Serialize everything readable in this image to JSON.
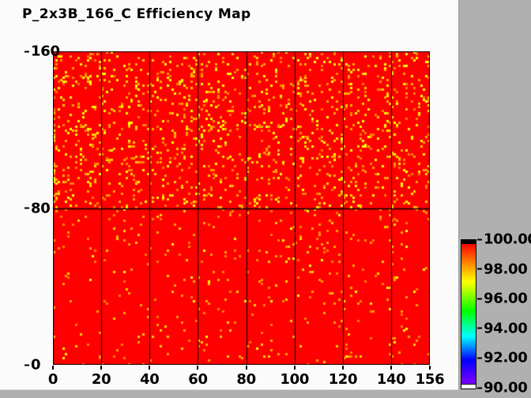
{
  "window": {
    "background_color": "#b0b0b0",
    "panel_color": "#fbfbfb"
  },
  "header": {
    "title": "P_2x3B_166_C Efficiency Map"
  },
  "chart_data": {
    "type": "heatmap",
    "title": "P_2x3B_166_C Efficiency Map",
    "xlabel": "",
    "ylabel": "",
    "xlim": [
      0,
      156
    ],
    "ylim": [
      0,
      160
    ],
    "x_ticks": [
      0,
      20,
      40,
      60,
      80,
      100,
      120,
      140,
      156
    ],
    "x_tick_labels": [
      "0",
      "20",
      "40",
      "60",
      "80",
      "100",
      "120",
      "140",
      "156"
    ],
    "y_ticks": [
      160,
      80,
      0
    ],
    "y_tick_labels": [
      "160",
      "80",
      "0"
    ],
    "bins": {
      "x": 156,
      "y": 160
    },
    "base_value_pct": 100,
    "base_color": "#ff0000",
    "grid": {
      "vertical_step": 20,
      "horizontal_step": 80,
      "color": "#000000",
      "on": true
    },
    "noise_cells": {
      "seed": 20166,
      "description": "Random scattered bins of ~96-99.5% efficiency (yellow/orange) over a ~100% (red) base. Upper half (y 80-160) is noticeably denser than lower half (y 0-80); the left-edge bin column in the upper half carries frequent dots.",
      "regions": [
        {
          "y_from": 80,
          "y_to": 160,
          "fill_fraction": 0.095,
          "first_col_fraction": 0.35,
          "colors": [
            "#ffff00",
            "#ffd000",
            "#ffa500",
            "#ff8000"
          ],
          "weights": [
            0.3,
            0.2,
            0.28,
            0.22
          ]
        },
        {
          "y_from": 0,
          "y_to": 80,
          "fill_fraction": 0.032,
          "first_col_fraction": 0.06,
          "colors": [
            "#ffff00",
            "#ffd000",
            "#ffa500",
            "#ff8000"
          ],
          "weights": [
            0.1,
            0.18,
            0.4,
            0.32
          ]
        }
      ]
    },
    "colorbar": {
      "min": 90,
      "max": 100,
      "tick_values": [
        100,
        98,
        96,
        94,
        92,
        90
      ],
      "tick_labels": [
        "100.00",
        "98.00",
        "96.00",
        "94.00",
        "92.00",
        "90.00"
      ],
      "over_range_color": "#000000",
      "under_range_color": "#ffffff",
      "gradient_top_to_bottom": [
        [
          "#ff0000",
          0
        ],
        [
          "#ff7f00",
          13
        ],
        [
          "#ffff00",
          27
        ],
        [
          "#00ff00",
          48
        ],
        [
          "#00ffff",
          66
        ],
        [
          "#0000ff",
          83
        ],
        [
          "#7f00ff",
          100
        ]
      ],
      "legend_position": "right"
    }
  }
}
